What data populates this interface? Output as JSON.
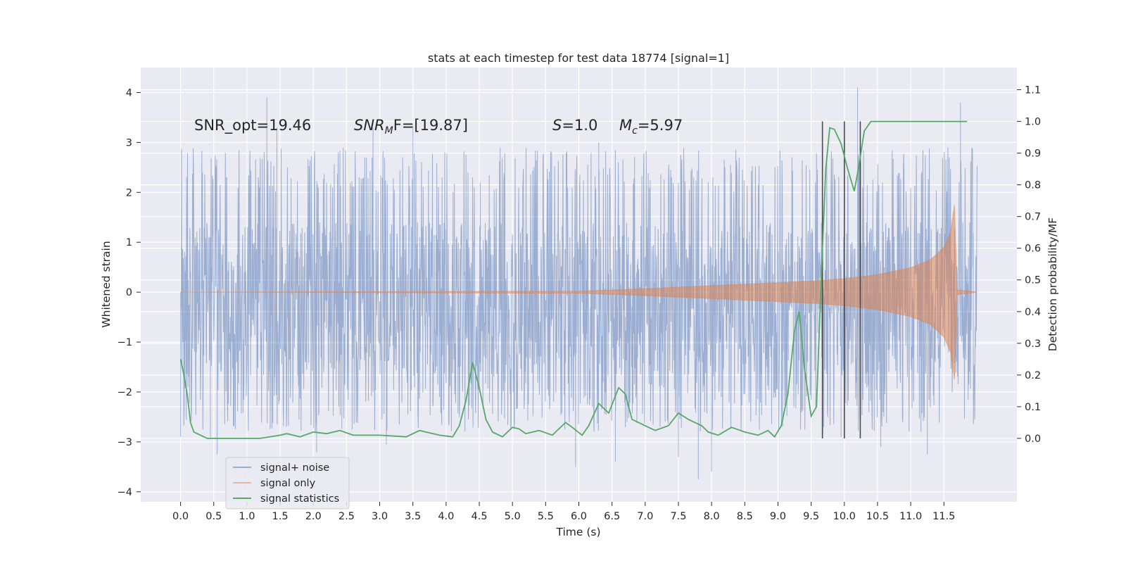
{
  "chart_data": {
    "type": "line",
    "title": "stats at each timestep for test data 18774 [signal=1]",
    "xlabel": "Time (s)",
    "ylabel": "Whitened strain",
    "ylabel_right": "Detection probability/MF",
    "xlim": [
      -0.6,
      12.6
    ],
    "ylim": [
      -4.2,
      4.5
    ],
    "ylim_right": [
      -0.2,
      1.17
    ],
    "xticks": [
      0.0,
      0.5,
      1.0,
      1.5,
      2.0,
      2.5,
      3.0,
      3.5,
      4.0,
      4.5,
      5.0,
      5.5,
      6.0,
      6.5,
      7.0,
      7.5,
      8.0,
      8.5,
      9.0,
      9.5,
      10.0,
      10.5,
      11.0,
      11.5
    ],
    "xticklabels": [
      "0.0",
      "0.5",
      "1.0",
      "1.5",
      "2.0",
      "2.5",
      "3.0",
      "3.5",
      "4.0",
      "4.5",
      "5.0",
      "5.5",
      "6.0",
      "6.5",
      "7.0",
      "7.5",
      "8.0",
      "8.5",
      "9.0",
      "9.5",
      "10.0",
      "10.5",
      "11.0",
      "11.5"
    ],
    "yticks": [
      -4,
      -3,
      -2,
      -1,
      0,
      1,
      2,
      3,
      4
    ],
    "yticklabels": [
      "−4",
      "−3",
      "−2",
      "−1",
      "0",
      "1",
      "2",
      "3",
      "4"
    ],
    "yticks_right": [
      0.0,
      0.1,
      0.2,
      0.3,
      0.4,
      0.5,
      0.6,
      0.7,
      0.8,
      0.9,
      1.0,
      1.1
    ],
    "yticklabels_right": [
      "0.0",
      "0.1",
      "0.2",
      "0.3",
      "0.4",
      "0.5",
      "0.6",
      "0.7",
      "0.8",
      "0.9",
      "1.0",
      "1.1"
    ],
    "grid": true,
    "legend_position": "lower-left",
    "annotations": {
      "snr_opt": "SNR_opt=19.46",
      "snr_mf": {
        "main": "SNR",
        "sub": "M",
        "after": "F=[19.87]"
      },
      "s": {
        "main": "S",
        "after": "=1.0"
      },
      "mc": {
        "main": "M",
        "sub": "c",
        "after": "=5.97"
      }
    },
    "vlines_x": [
      9.67,
      10.0,
      10.24
    ],
    "vlines_yrange_right": [
      0.0,
      1.0
    ],
    "series": [
      {
        "name": "signal+ noise",
        "color": "#4c72b0",
        "axis": "left",
        "kind": "noise-trace",
        "x_range": [
          0.0,
          12.0
        ],
        "core_band": [
          -1.7,
          1.4
        ],
        "peaks": [
          {
            "x": 0.0,
            "y": -2.9
          },
          {
            "x": 0.45,
            "y": -2.9
          },
          {
            "x": 0.55,
            "y": -3.25
          },
          {
            "x": 1.3,
            "y": 3.9
          },
          {
            "x": 1.45,
            "y": 3.3
          },
          {
            "x": 2.05,
            "y": -3.2
          },
          {
            "x": 2.9,
            "y": 3.3
          },
          {
            "x": 3.1,
            "y": -3.05
          },
          {
            "x": 3.5,
            "y": 3.35
          },
          {
            "x": 5.95,
            "y": -3.5
          },
          {
            "x": 6.3,
            "y": 3.0
          },
          {
            "x": 6.55,
            "y": -3.4
          },
          {
            "x": 7.5,
            "y": -3.3
          },
          {
            "x": 7.8,
            "y": -3.75
          },
          {
            "x": 8.0,
            "y": -3.6
          },
          {
            "x": 9.95,
            "y": -2.9
          },
          {
            "x": 10.2,
            "y": 4.1
          },
          {
            "x": 10.55,
            "y": -3.1
          },
          {
            "x": 11.25,
            "y": -3.25
          },
          {
            "x": 11.75,
            "y": 3.8
          }
        ]
      },
      {
        "name": "signal only",
        "color": "#dd8452",
        "axis": "left",
        "kind": "chirp-envelope",
        "x_range": [
          0.0,
          12.0
        ],
        "envelope_points": [
          [
            0.0,
            0.0
          ],
          [
            6.0,
            0.02
          ],
          [
            7.0,
            0.07
          ],
          [
            8.0,
            0.13
          ],
          [
            9.0,
            0.19
          ],
          [
            9.6,
            0.23
          ],
          [
            10.0,
            0.27
          ],
          [
            10.5,
            0.35
          ],
          [
            11.0,
            0.49
          ],
          [
            11.3,
            0.65
          ],
          [
            11.5,
            0.9
          ],
          [
            11.6,
            1.2
          ],
          [
            11.66,
            1.75
          ],
          [
            11.7,
            0.05
          ],
          [
            12.0,
            0.0
          ]
        ]
      },
      {
        "name": "signal statistics",
        "color": "#55a868",
        "axis": "right",
        "points": [
          [
            0.0,
            0.25
          ],
          [
            0.05,
            0.2
          ],
          [
            0.1,
            0.14
          ],
          [
            0.15,
            0.05
          ],
          [
            0.2,
            0.02
          ],
          [
            0.3,
            0.01
          ],
          [
            0.4,
            0.0
          ],
          [
            0.5,
            0.0
          ],
          [
            0.8,
            0.0
          ],
          [
            1.2,
            0.0
          ],
          [
            1.5,
            0.01
          ],
          [
            1.6,
            0.015
          ],
          [
            1.8,
            0.005
          ],
          [
            2.0,
            0.02
          ],
          [
            2.2,
            0.015
          ],
          [
            2.4,
            0.025
          ],
          [
            2.6,
            0.01
          ],
          [
            3.0,
            0.01
          ],
          [
            3.4,
            0.005
          ],
          [
            3.6,
            0.025
          ],
          [
            3.9,
            0.01
          ],
          [
            4.1,
            0.005
          ],
          [
            4.2,
            0.04
          ],
          [
            4.3,
            0.12
          ],
          [
            4.4,
            0.24
          ],
          [
            4.5,
            0.16
          ],
          [
            4.6,
            0.06
          ],
          [
            4.7,
            0.02
          ],
          [
            4.85,
            0.005
          ],
          [
            5.0,
            0.035
          ],
          [
            5.1,
            0.03
          ],
          [
            5.2,
            0.015
          ],
          [
            5.4,
            0.025
          ],
          [
            5.6,
            0.01
          ],
          [
            5.8,
            0.05
          ],
          [
            5.9,
            0.035
          ],
          [
            6.05,
            0.01
          ],
          [
            6.15,
            0.04
          ],
          [
            6.3,
            0.11
          ],
          [
            6.45,
            0.08
          ],
          [
            6.6,
            0.16
          ],
          [
            6.7,
            0.14
          ],
          [
            6.8,
            0.06
          ],
          [
            7.0,
            0.04
          ],
          [
            7.15,
            0.025
          ],
          [
            7.35,
            0.04
          ],
          [
            7.5,
            0.08
          ],
          [
            7.65,
            0.06
          ],
          [
            7.85,
            0.04
          ],
          [
            7.95,
            0.02
          ],
          [
            8.1,
            0.01
          ],
          [
            8.3,
            0.035
          ],
          [
            8.5,
            0.02
          ],
          [
            8.7,
            0.01
          ],
          [
            8.85,
            0.025
          ],
          [
            8.95,
            0.005
          ],
          [
            9.05,
            0.04
          ],
          [
            9.15,
            0.14
          ],
          [
            9.25,
            0.34
          ],
          [
            9.32,
            0.4
          ],
          [
            9.4,
            0.22
          ],
          [
            9.5,
            0.07
          ],
          [
            9.58,
            0.1
          ],
          [
            9.65,
            0.5
          ],
          [
            9.72,
            0.85
          ],
          [
            9.78,
            0.98
          ],
          [
            9.85,
            0.975
          ],
          [
            9.95,
            0.93
          ],
          [
            10.05,
            0.85
          ],
          [
            10.15,
            0.78
          ],
          [
            10.22,
            0.86
          ],
          [
            10.3,
            0.97
          ],
          [
            10.4,
            1.0
          ],
          [
            10.6,
            1.0
          ],
          [
            11.0,
            1.0
          ],
          [
            11.5,
            1.0
          ],
          [
            11.85,
            1.0
          ]
        ]
      }
    ]
  }
}
